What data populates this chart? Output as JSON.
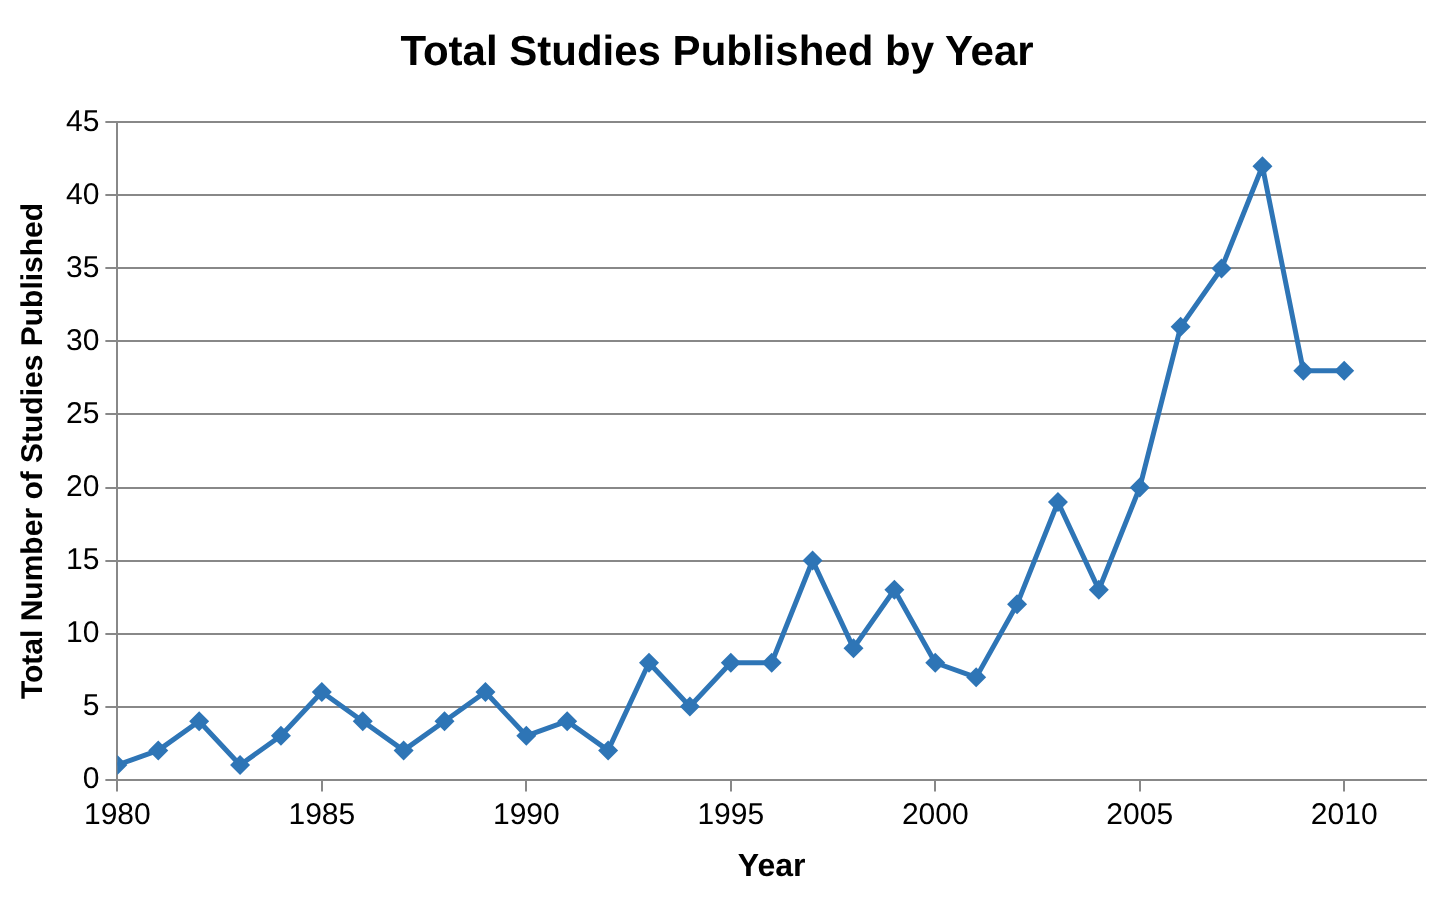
{
  "chart_data": {
    "type": "line",
    "title": "Total Studies Published by Year",
    "xlabel": "Year",
    "ylabel": "Total Number of Studies Published",
    "x": [
      1980,
      1981,
      1982,
      1983,
      1984,
      1985,
      1986,
      1987,
      1988,
      1989,
      1990,
      1991,
      1992,
      1993,
      1994,
      1995,
      1996,
      1997,
      1998,
      1999,
      2000,
      2001,
      2002,
      2003,
      2004,
      2005,
      2006,
      2007,
      2008,
      2009,
      2010
    ],
    "series": [
      {
        "color": "#2e75b6",
        "values": [
          1,
          2,
          4,
          1,
          3,
          6,
          4,
          2,
          4,
          6,
          3,
          4,
          2,
          8,
          5,
          8,
          8,
          15,
          9,
          13,
          8,
          7,
          12,
          19,
          13,
          20,
          31,
          35,
          42,
          28,
          28
        ]
      }
    ],
    "xlim": [
      1980,
      2012
    ],
    "xticks": [
      1980,
      1985,
      1990,
      1995,
      2000,
      2005,
      2010
    ],
    "ylim": [
      0,
      45
    ],
    "yticks": [
      0,
      5,
      10,
      15,
      20,
      25,
      30,
      35,
      40,
      45
    ],
    "grid": "y",
    "legend": false,
    "marker": "diamond",
    "line_style": "solid"
  }
}
